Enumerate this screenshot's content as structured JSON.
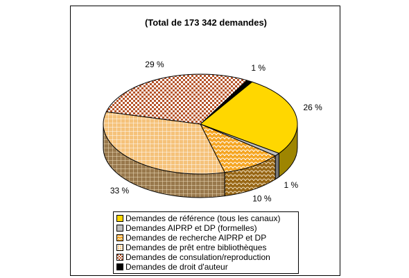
{
  "chart_data": {
    "type": "pie",
    "title": "(Total de 173 342 demandes)",
    "slices": [
      {
        "label": "Demandes de référence (tous les canaux)",
        "value": 26,
        "data_label": "26 %",
        "color": "#ffd700",
        "pattern": "solid"
      },
      {
        "label": "Demandes AIPRP et DP (formelles)",
        "value": 1,
        "data_label": "1 %",
        "color": "#c0c0c0",
        "pattern": "solid"
      },
      {
        "label": "Demandes de recherche AIPRP et DP",
        "value": 10,
        "data_label": "10 %",
        "color": "#f5a623",
        "pattern": "scales"
      },
      {
        "label": "Demandes de prêt entre bibliothèques",
        "value": 33,
        "data_label": "33 %",
        "color": "#f5c27a",
        "pattern": "grid"
      },
      {
        "label": "Demandes de consulation/reproduction",
        "value": 29,
        "data_label": "29 %",
        "color": "#b5542a",
        "pattern": "checker"
      },
      {
        "label": "Demandes de droit d'auteur",
        "value": 1,
        "data_label": "1 %",
        "color": "#000000",
        "pattern": "solid"
      }
    ],
    "legend_position": "bottom",
    "style": "3d"
  }
}
